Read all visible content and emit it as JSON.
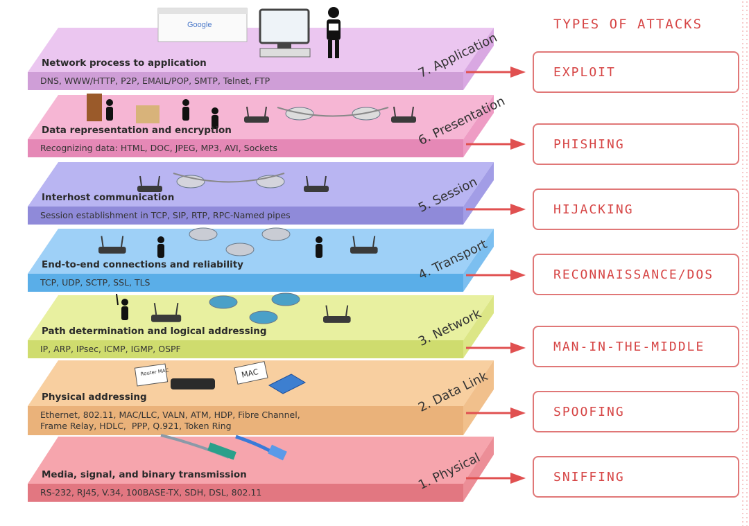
{
  "attacks_title": "TYPES OF ATTACKS",
  "layers": [
    {
      "name": "7. Application",
      "title": "Network process to application",
      "protocols": "DNS, WWW/HTTP, P2P, EMAIL/POP, SMTP, Telnet, FTP",
      "attack": "EXPLOIT",
      "top_color": "#ebc6f0",
      "bar_color": "#cf9ed7",
      "side_color": "#d9a8e2"
    },
    {
      "name": "6. Presentation",
      "title": "Data representation and encryption",
      "protocols": "Recognizing data: HTML, DOC, JPEG, MP3, AVI, Sockets",
      "attack": "PHISHING",
      "top_color": "#f6b6d4",
      "bar_color": "#e588b6",
      "side_color": "#ee9cc4"
    },
    {
      "name": "5. Session",
      "title": "Interhost communication",
      "protocols": "Session establishment in TCP, SIP, RTP, RPC-Named pipes",
      "attack": "HIJACKING",
      "top_color": "#b9b5f2",
      "bar_color": "#8f8ad9",
      "side_color": "#a29de6"
    },
    {
      "name": "4. Transport",
      "title": "End-to-end connections and reliability",
      "protocols": "TCP, UDP, SCTP, SSL, TLS",
      "attack": "RECONNAISSANCE/DOS",
      "top_color": "#9ed0f7",
      "bar_color": "#5aaee8",
      "side_color": "#7cbff0"
    },
    {
      "name": "3. Network",
      "title": "Path determination and logical addressing",
      "protocols": "IP, ARP, IPsec, ICMP, IGMP, OSPF",
      "attack": "MAN-IN-THE-MIDDLE",
      "top_color": "#e8f0a0",
      "bar_color": "#cfdc6e",
      "side_color": "#dce686"
    },
    {
      "name": "2. Data Link",
      "title": "Physical addressing",
      "protocols": "Ethernet, 802.11, MAC/LLC, VALN, ATM, HDP, Fibre Channel,\nFrame Relay, HDLC,  PPP, Q.921, Token Ring",
      "attack": "SPOOFING",
      "top_color": "#f8cfa0",
      "bar_color": "#eab27a",
      "side_color": "#f1c08c"
    },
    {
      "name": "1. Physical",
      "title": "Media, signal, and binary transmission",
      "protocols": "RS-232, RJ45, V.34, 100BASE-TX, SDH, DSL, 802.11",
      "attack": "SNIFFING",
      "top_color": "#f6a5ad",
      "bar_color": "#e27781",
      "side_color": "#ec8e97"
    }
  ],
  "icons": {
    "browser_logo": "Google",
    "router_tag": "Router MAC",
    "mac_tag": "MAC"
  },
  "colors": {
    "accent": "#d64545",
    "arrow": "#e05050",
    "box_border": "#e07777"
  }
}
